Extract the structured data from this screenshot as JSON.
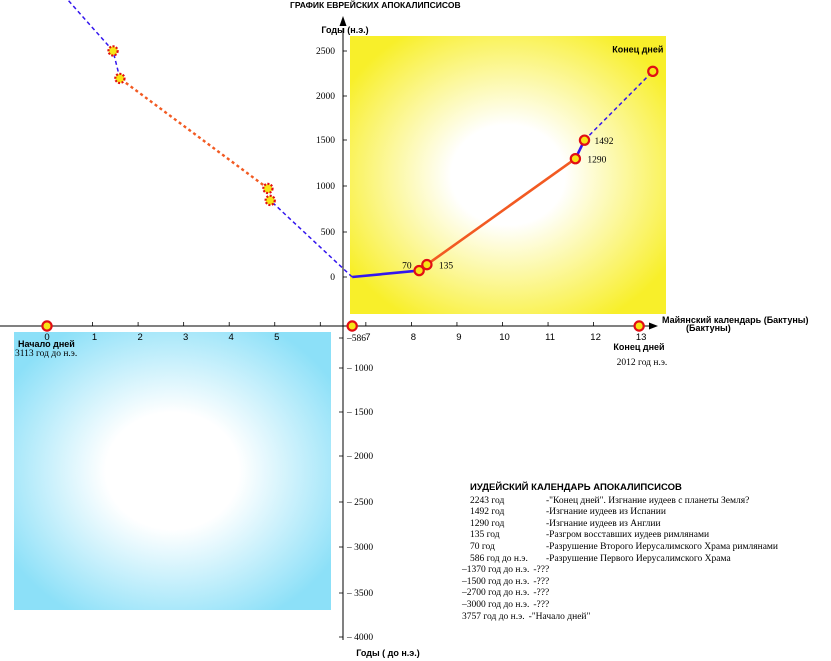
{
  "chart_data": {
    "type": "line",
    "title": "ГРАФИК ЕВРЕЙСКИХ АПОКАЛИПСИСОВ",
    "xlabel": "Майянский календарь (Бактуны)",
    "ylabel_top": "Годы (н.э.)",
    "ylabel_bottom": "Годы ( до н.э.)",
    "x_ticks": [
      "0",
      "1",
      "2",
      "3",
      "4",
      "5",
      "6",
      "7",
      "8",
      "9",
      "10",
      "11",
      "12",
      "13"
    ],
    "y_ticks_positive": [
      "0",
      "500",
      "1000",
      "1500",
      "2000",
      "2500"
    ],
    "y_ticks_negative": [
      "–586",
      "– 1000",
      "– 1500",
      "– 2000",
      "– 2500",
      "– 3000",
      "– 3500",
      "– 4000"
    ],
    "xlim": [
      0,
      13
    ],
    "grid": false,
    "colors": {
      "solid_blue": "#3316ee",
      "orange": "#f25a22",
      "marker_ring": "#e20e14",
      "marker_fill": "#f6e516",
      "top_panel": "#f8ef2a",
      "bottom_panel": "#8ce0f8"
    },
    "axis_markers": [
      {
        "x": 0,
        "y": 0,
        "label": "Начало дней",
        "sublabel": "3113 год  до н.э."
      },
      {
        "x": 6.7,
        "y": 0,
        "label": "",
        "sublabel": ""
      },
      {
        "x": 13,
        "y": 0,
        "label": "Конец дней",
        "sublabel": "2012 год   н.э."
      }
    ],
    "series": [
      {
        "style": "solid",
        "color": "blue",
        "points": [
          [
            6.7,
            0
          ],
          [
            8.17,
            70
          ]
        ]
      },
      {
        "style": "solid",
        "color": "orange",
        "points": [
          [
            8.34,
            135
          ],
          [
            11.6,
            1290
          ]
        ]
      },
      {
        "style": "solid",
        "color": "blue",
        "points": [
          [
            11.6,
            1290
          ],
          [
            11.8,
            1492
          ]
        ]
      },
      {
        "style": "dashed",
        "color": "blue",
        "points": [
          [
            11.8,
            1492
          ],
          [
            13.3,
            2243
          ]
        ]
      },
      {
        "style": "dashed",
        "color": "blue",
        "points": [
          [
            6.7,
            0
          ],
          [
            4.9,
            -1370
          ]
        ]
      },
      {
        "style": "dotted",
        "color": "orange",
        "points": [
          [
            4.85,
            -1500
          ],
          [
            1.6,
            -2700
          ]
        ]
      },
      {
        "style": "dashed",
        "color": "blue",
        "points": [
          [
            1.6,
            -2700
          ],
          [
            1.45,
            -3000
          ]
        ]
      },
      {
        "style": "dashed",
        "color": "blue",
        "points": [
          [
            1.45,
            -3000
          ],
          [
            0.1,
            -3757
          ]
        ]
      }
    ],
    "events": [
      {
        "x": 8.17,
        "y": 70,
        "label": "70"
      },
      {
        "x": 8.34,
        "y": 135,
        "label": "135"
      },
      {
        "x": 11.6,
        "y": 1290,
        "label": "1290"
      },
      {
        "x": 11.8,
        "y": 1492,
        "label": "1492"
      },
      {
        "x": 13.3,
        "y": 2243,
        "label": "Конец дней"
      },
      {
        "x": 4.9,
        "y": -1370,
        "label": ""
      },
      {
        "x": 4.85,
        "y": -1500,
        "label": ""
      },
      {
        "x": 1.6,
        "y": -2700,
        "label": ""
      },
      {
        "x": 1.45,
        "y": -3000,
        "label": ""
      },
      {
        "x": 0.1,
        "y": -3757,
        "label": "Начало дней"
      }
    ]
  },
  "legend": {
    "title": "ИУДЕЙСКИЙ КАЛЕНДАРЬ АПОКАЛИПСИСОВ",
    "rows": [
      {
        "year": "2243 год",
        "desc": "-\"Конец дней\".  Изгнание иудеев с планеты Земля?"
      },
      {
        "year": "1492 год",
        "desc": "-Изгнание иудеев из Испании"
      },
      {
        "year": "1290 год",
        "desc": "-Изгнание иудеев из Англии"
      },
      {
        "year": "135  год",
        "desc": " -Разгром восставших иудеев римлянами"
      },
      {
        "year": " 70   год",
        "desc": " -Разрушение Второго  Иерусалимского Храма римлянами"
      },
      {
        "year": "586 год до н.э.",
        "desc": "-Разрушение Первого Иерусалимского Храма"
      },
      {
        "year": "–1370 год до н.э.",
        "desc": "-???"
      },
      {
        "year": "–1500 год до н.э.",
        "desc": "-???"
      },
      {
        "year": "–2700 год до н.э.",
        "desc": "-???"
      },
      {
        "year": "–3000 год до н.э.",
        "desc": "-???"
      },
      {
        "year": "  3757 год до н.э.",
        "desc": "-\"Начало дней\""
      }
    ]
  }
}
